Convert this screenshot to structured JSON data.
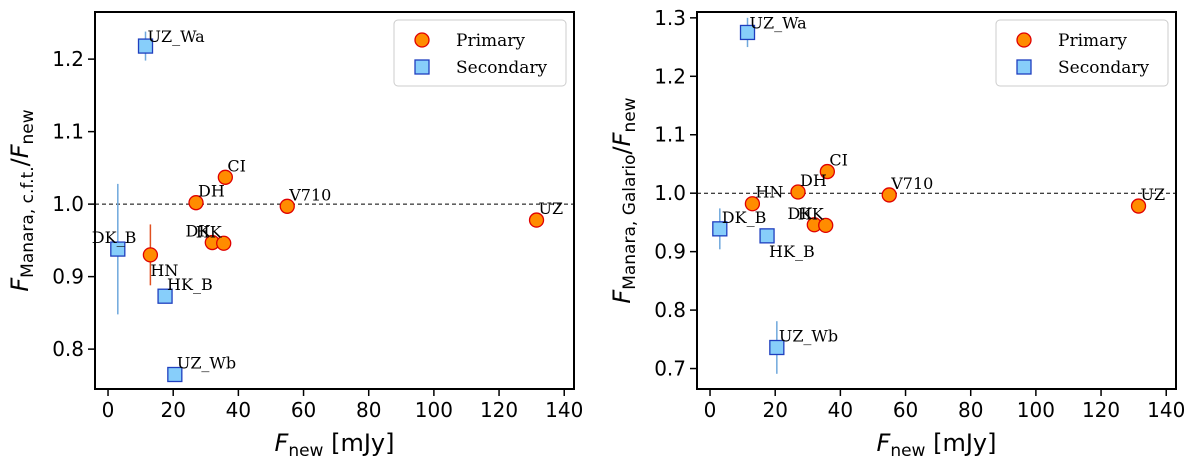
{
  "chart_data": [
    {
      "type": "scatter",
      "xlabel": "F_new [mJy]",
      "ylabel": "F_Manara, c.f.t./F_new",
      "xlim": [
        -4,
        143
      ],
      "ylim": [
        0.745,
        1.265
      ],
      "xticks": [
        0,
        20,
        40,
        60,
        80,
        100,
        120,
        140
      ],
      "yticks": [
        0.8,
        0.9,
        1.0,
        1.1,
        1.2
      ],
      "ytick_labels": [
        "0.8",
        "0.9",
        "1.0",
        "1.1",
        "1.2"
      ],
      "reference_line": 1.0,
      "legend": {
        "placement": "top-right",
        "entries": [
          "Primary",
          "Secondary"
        ]
      },
      "series": [
        {
          "name": "Primary",
          "color": "#ff8c00",
          "edge_color": "#e00000",
          "marker": "circle",
          "points": [
            {
              "label": "CI",
              "x": 36,
              "y": 1.037,
              "err": 0
            },
            {
              "label": "DH",
              "x": 27,
              "y": 1.002,
              "err": 0
            },
            {
              "label": "V710",
              "x": 55,
              "y": 0.997,
              "err": 0
            },
            {
              "label": "UZ",
              "x": 131.5,
              "y": 0.978,
              "err": 0
            },
            {
              "label": "DK",
              "x": 32,
              "y": 0.947,
              "err": 0
            },
            {
              "label": "HK",
              "x": 35.5,
              "y": 0.946,
              "err": 0
            },
            {
              "label": "HN",
              "x": 13,
              "y": 0.93,
              "err": 0.042
            }
          ]
        },
        {
          "name": "Secondary",
          "color": "#87cefa",
          "edge_color": "#1f3fbf",
          "marker": "square",
          "points": [
            {
              "label": "UZ_Wa",
              "x": 11.5,
              "y": 1.218,
              "err": 0.02
            },
            {
              "label": "DK_B",
              "x": 3,
              "y": 0.938,
              "err": 0.09
            },
            {
              "label": "HK_B",
              "x": 17.5,
              "y": 0.873,
              "err": 0.008
            },
            {
              "label": "UZ_Wb",
              "x": 20.5,
              "y": 0.765,
              "err": 0.006
            }
          ]
        }
      ]
    },
    {
      "type": "scatter",
      "xlabel": "F_new [mJy]",
      "ylabel": "F_Manara, Galario/F_new",
      "xlim": [
        -4,
        143
      ],
      "ylim": [
        0.665,
        1.31
      ],
      "xticks": [
        0,
        20,
        40,
        60,
        80,
        100,
        120,
        140
      ],
      "yticks": [
        0.7,
        0.8,
        0.9,
        1.0,
        1.1,
        1.2,
        1.3
      ],
      "ytick_labels": [
        "0.7",
        "0.8",
        "0.9",
        "1.0",
        "1.1",
        "1.2",
        "1.3"
      ],
      "reference_line": 1.0,
      "legend": {
        "placement": "top-right",
        "entries": [
          "Primary",
          "Secondary"
        ]
      },
      "series": [
        {
          "name": "Primary",
          "color": "#ff8c00",
          "edge_color": "#e00000",
          "marker": "circle",
          "points": [
            {
              "label": "CI",
              "x": 36,
              "y": 1.037,
              "err": 0
            },
            {
              "label": "DH",
              "x": 27,
              "y": 1.002,
              "err": 0
            },
            {
              "label": "V710",
              "x": 55,
              "y": 0.997,
              "err": 0
            },
            {
              "label": "UZ",
              "x": 131.5,
              "y": 0.978,
              "err": 0
            },
            {
              "label": "HN",
              "x": 13,
              "y": 0.982,
              "err": 0
            },
            {
              "label": "DK",
              "x": 32,
              "y": 0.946,
              "err": 0
            },
            {
              "label": "HK",
              "x": 35.5,
              "y": 0.945,
              "err": 0
            }
          ]
        },
        {
          "name": "Secondary",
          "color": "#87cefa",
          "edge_color": "#1f3fbf",
          "marker": "square",
          "points": [
            {
              "label": "UZ_Wa",
              "x": 11.5,
              "y": 1.275,
              "err": 0.025
            },
            {
              "label": "DK_B",
              "x": 3,
              "y": 0.939,
              "err": 0.035
            },
            {
              "label": "HK_B",
              "x": 17.5,
              "y": 0.927,
              "err": 0.006
            },
            {
              "label": "UZ_Wb",
              "x": 20.5,
              "y": 0.736,
              "err": 0.045
            }
          ]
        }
      ]
    }
  ]
}
